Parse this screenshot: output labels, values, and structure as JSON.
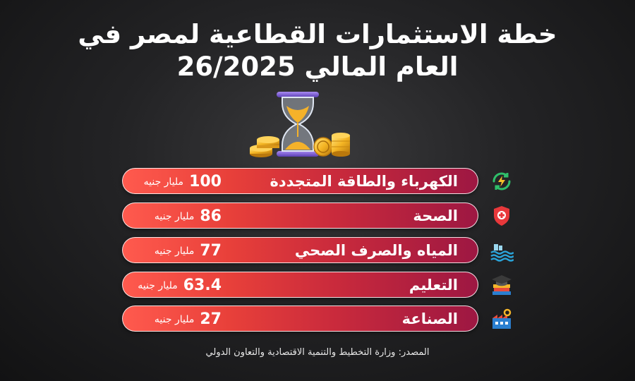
{
  "title": {
    "line1": "خطة الاستثمارات القطاعية لمصر في",
    "line2": "العام المالي 26/2025"
  },
  "chart_data": {
    "type": "bar",
    "unit": "مليار جنيه",
    "categories": [
      "الكهرباء والطاقة المتجددة",
      "الصحة",
      "المياه والصرف الصحي",
      "التعليم",
      "الصناعة"
    ],
    "values": [
      100,
      86,
      77,
      63.4,
      27
    ],
    "value_labels": [
      "100",
      "86",
      "77",
      "63.4",
      "27"
    ]
  },
  "icons": [
    "energy-recycle-icon",
    "health-shield-icon",
    "water-wave-icon",
    "education-books-icon",
    "industry-factory-icon"
  ],
  "colors": {
    "bar_start": "#ff5a4e",
    "bar_end": "#9d1742",
    "icon_green": "#2fbf6a",
    "icon_red": "#e8383b",
    "icon_blue": "#2aa3d8"
  },
  "source": "المصدر: وزارة التخطيط والتنمية الاقتصادية والتعاون الدولي"
}
